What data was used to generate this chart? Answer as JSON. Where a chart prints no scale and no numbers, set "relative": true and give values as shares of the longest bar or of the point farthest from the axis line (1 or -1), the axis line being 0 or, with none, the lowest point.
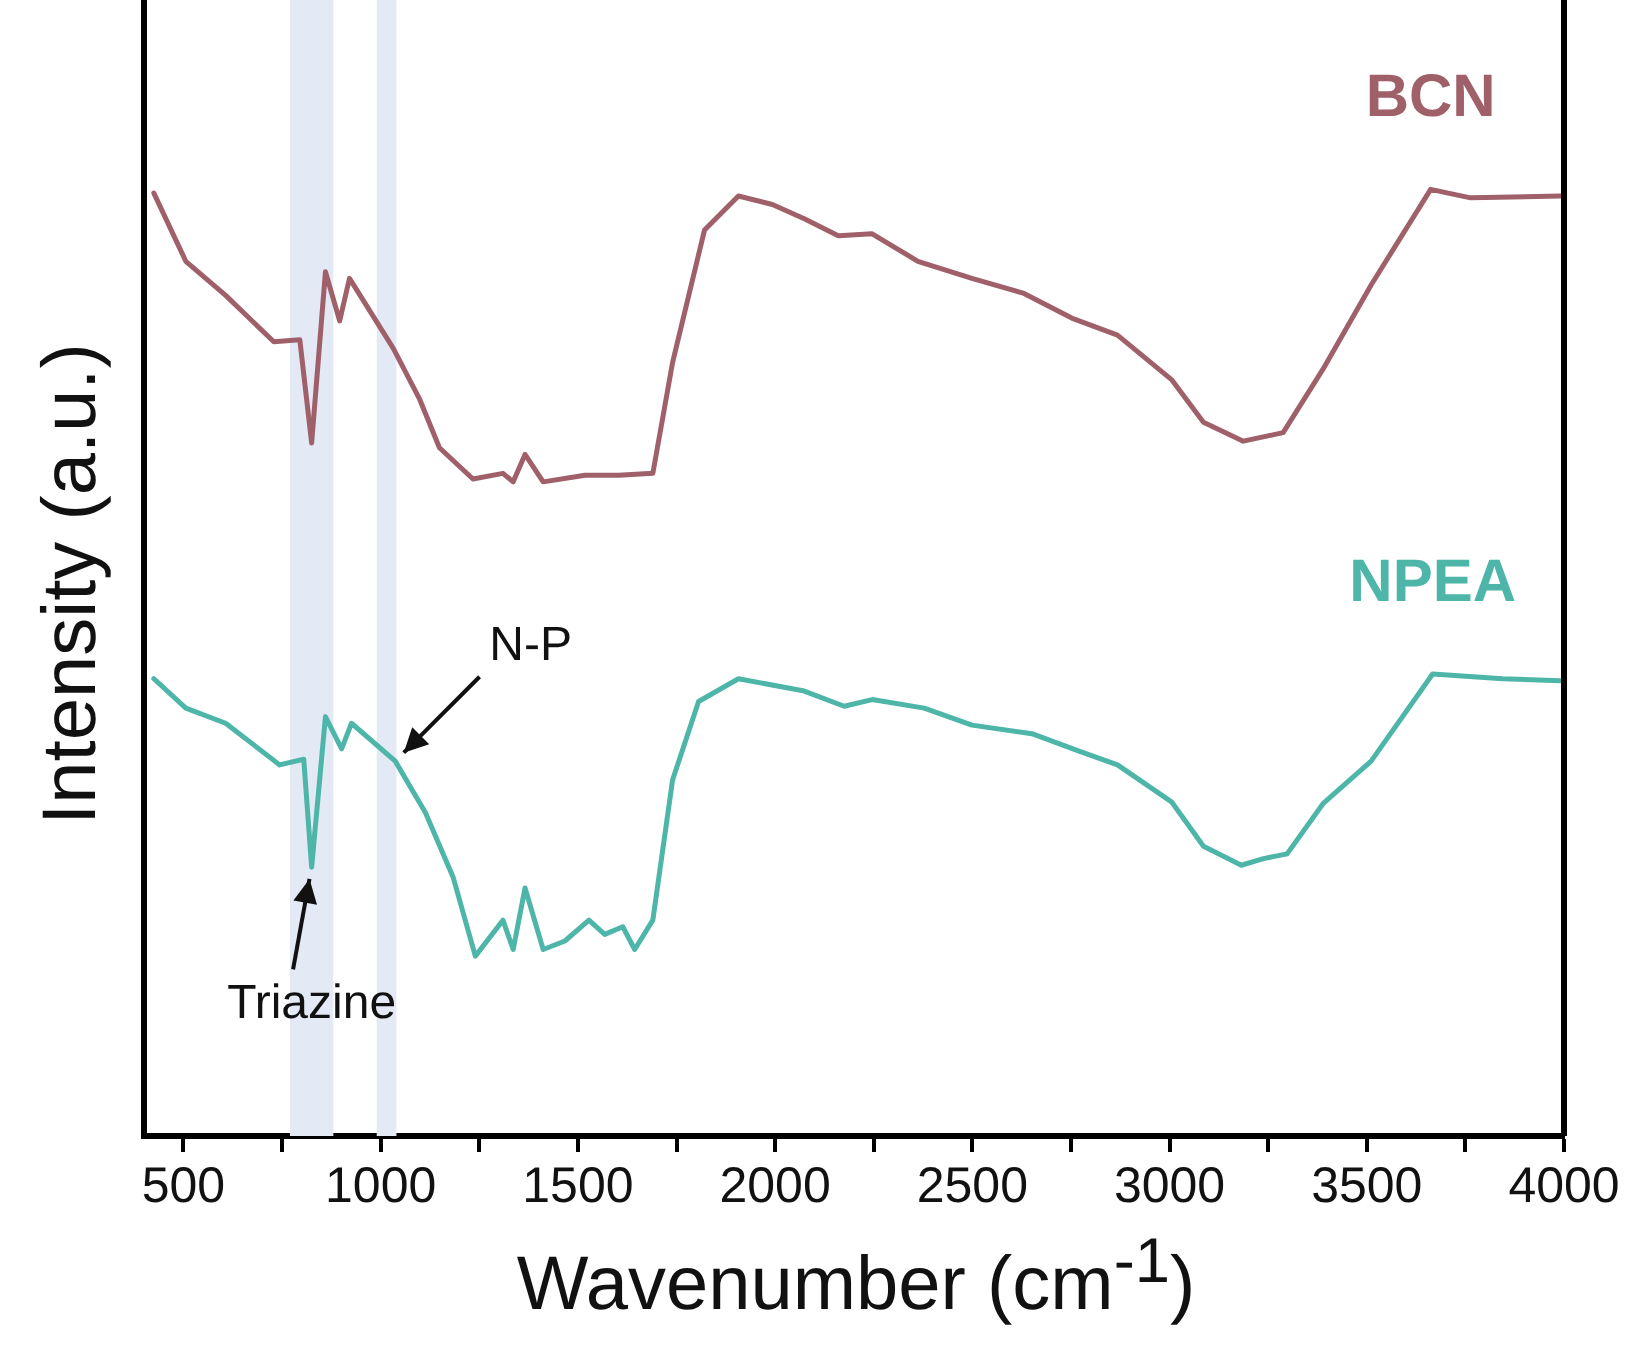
{
  "chart_data": {
    "type": "line",
    "relative": true,
    "xlabel": "Wavenumber (cm$^{-1}$)",
    "ylabel": "Intensity (a.u.)",
    "xlim": [
      400,
      4000
    ],
    "xticks": [
      500,
      {
        "value": 750,
        "label": null
      },
      1000,
      {
        "value": 1250,
        "label": null
      },
      1500,
      {
        "value": 1750,
        "label": null
      },
      2000,
      {
        "value": 2250,
        "label": null
      },
      2500,
      {
        "value": 2750,
        "label": null
      },
      3000,
      {
        "value": 3250,
        "label": null
      },
      3500,
      {
        "value": 3750,
        "label": null
      },
      4000
    ],
    "legend": false,
    "grid": false,
    "marker": "none",
    "line_style": "solid",
    "bands": [
      {
        "axis": "x",
        "from": 770,
        "to": 880,
        "color": "#e3eaf6"
      },
      {
        "axis": "x",
        "from": 990,
        "to": 1040,
        "color": "#e3eaf6"
      }
    ],
    "annotations": [
      {
        "text": "N-P",
        "x": 1037,
        "y": 0.396
      },
      {
        "text": "Triazine",
        "x": 825,
        "y": 0.284
      }
    ],
    "series": [
      {
        "name": "BCN",
        "color": "#a0606a",
        "x": [
          425,
          506,
          607,
          729,
          795,
          825,
          860,
          896,
          921,
          1032,
          1098,
          1149,
          1234,
          1310,
          1336,
          1366,
          1412,
          1518,
          1604,
          1690,
          1740,
          1821,
          1907,
          1993,
          2074,
          2160,
          2246,
          2362,
          2499,
          2631,
          2752,
          2868,
          3005,
          3086,
          3187,
          3288,
          3389,
          3511,
          3662,
          3763,
          3991
        ],
        "values": [
          0.996,
          0.924,
          0.888,
          0.839,
          0.841,
          0.732,
          0.913,
          0.861,
          0.906,
          0.832,
          0.779,
          0.727,
          0.694,
          0.7,
          0.691,
          0.72,
          0.691,
          0.698,
          0.698,
          0.7,
          0.817,
          0.957,
          0.993,
          0.984,
          0.969,
          0.951,
          0.953,
          0.924,
          0.906,
          0.89,
          0.864,
          0.846,
          0.799,
          0.754,
          0.734,
          0.743,
          0.81,
          0.899,
          1,
          0.991,
          0.993
        ]
      },
      {
        "name": "NPEA",
        "color": "#4db6a8",
        "x": [
          425,
          506,
          607,
          744,
          805,
          825,
          860,
          901,
          926,
          1037,
          1113,
          1184,
          1240,
          1310,
          1336,
          1366,
          1412,
          1467,
          1528,
          1568,
          1614,
          1644,
          1690,
          1740,
          1806,
          1907,
          2074,
          2175,
          2246,
          2378,
          2499,
          2651,
          2767,
          2868,
          3005,
          3086,
          3182,
          3238,
          3298,
          3389,
          3511,
          3667,
          3844,
          3991
        ],
        "values": [
          0.483,
          0.452,
          0.436,
          0.392,
          0.398,
          0.284,
          0.443,
          0.409,
          0.436,
          0.396,
          0.342,
          0.273,
          0.19,
          0.228,
          0.197,
          0.262,
          0.197,
          0.206,
          0.228,
          0.213,
          0.221,
          0.197,
          0.228,
          0.376,
          0.459,
          0.483,
          0.47,
          0.454,
          0.461,
          0.452,
          0.434,
          0.425,
          0.407,
          0.392,
          0.353,
          0.306,
          0.286,
          0.293,
          0.298,
          0.351,
          0.396,
          0.488,
          0.483,
          0.481
        ]
      }
    ]
  }
}
